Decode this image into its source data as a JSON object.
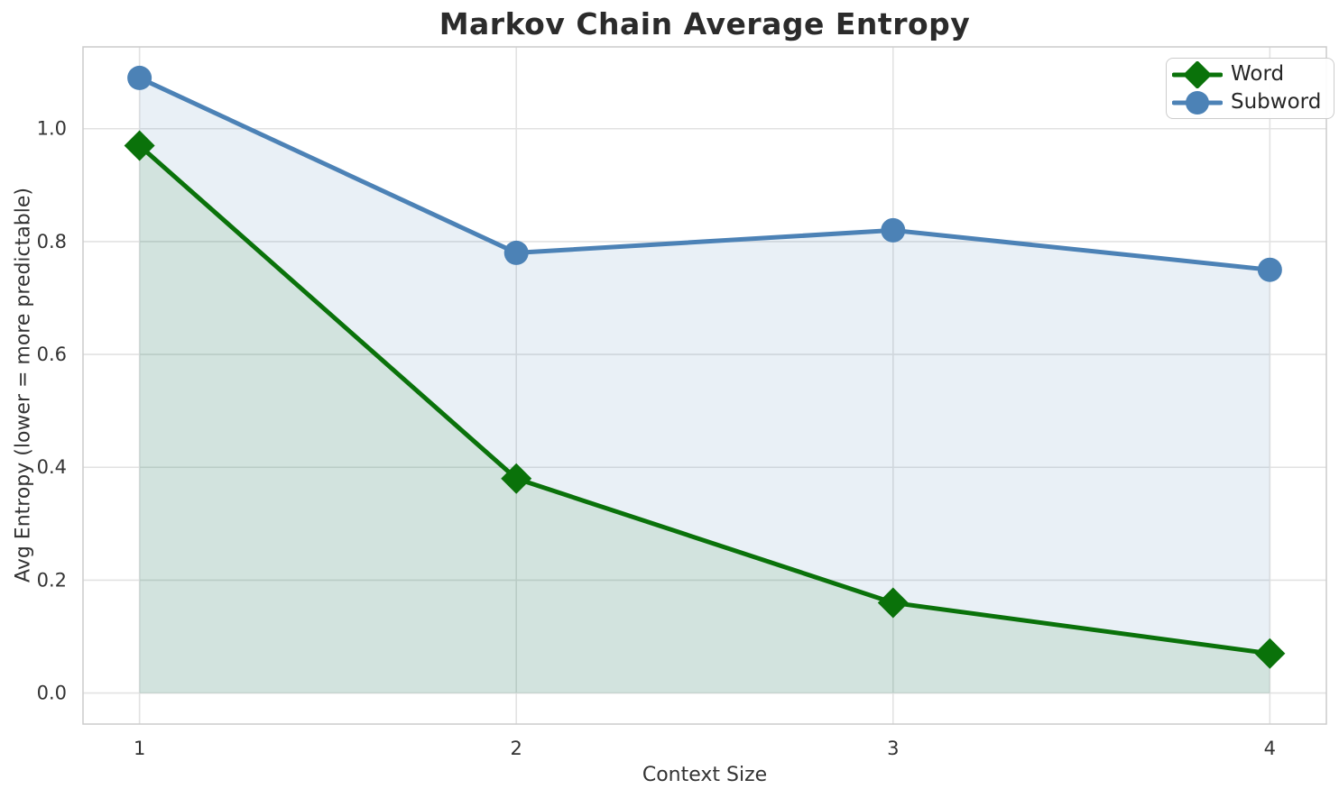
{
  "chart_data": {
    "type": "line",
    "title": "Markov Chain Average Entropy",
    "xlabel": "Context Size",
    "ylabel": "Avg Entropy (lower = more predictable)",
    "x": [
      1,
      2,
      3,
      4
    ],
    "series": [
      {
        "name": "Word",
        "marker": "diamond",
        "color": "#0a720a",
        "values": [
          0.97,
          0.38,
          0.16,
          0.07
        ],
        "fill_to_zero": true,
        "fill_opacity": 0.1
      },
      {
        "name": "Subword",
        "marker": "circle",
        "color": "#4c82b6",
        "values": [
          1.09,
          0.78,
          0.82,
          0.75
        ],
        "fill_to_zero": true,
        "fill_opacity": 0.12
      }
    ],
    "xticks": [
      "1",
      "2",
      "3",
      "4"
    ],
    "xtick_values": [
      1,
      2,
      3,
      4
    ],
    "yticks": [
      "0.0",
      "0.2",
      "0.4",
      "0.6",
      "0.8",
      "1.0"
    ],
    "ytick_values": [
      0,
      0.2,
      0.4,
      0.6,
      0.8,
      1.0
    ],
    "xlim": [
      0.85,
      4.15
    ],
    "ylim": [
      -0.055,
      1.145
    ],
    "grid": true,
    "legend_position": "upper right",
    "style_colors": {
      "grid": "#e2e2e2",
      "spine": "#cccccc",
      "title_text": "#2b2b2b",
      "tick_text": "#333333",
      "background": "#ffffff"
    }
  }
}
